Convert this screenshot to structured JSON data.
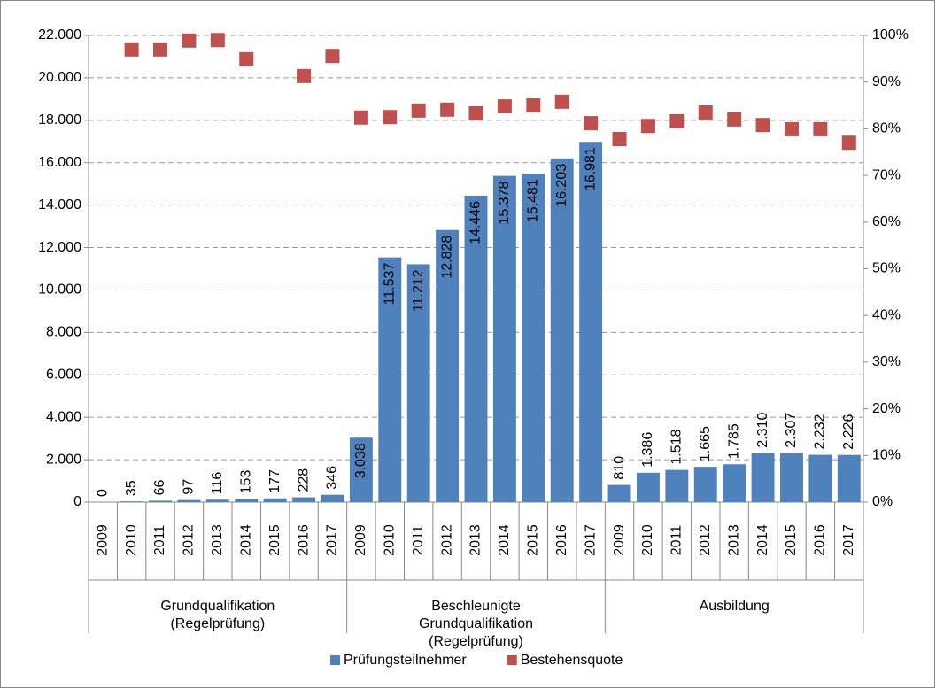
{
  "chart_data": {
    "type": "bar",
    "groups": [
      {
        "label": [
          "Grundqualifikation",
          "(Regelprüfung)"
        ],
        "categories": [
          "2009",
          "2010",
          "2011",
          "2012",
          "2013",
          "2014",
          "2015",
          "2016",
          "2017"
        ]
      },
      {
        "label": [
          "Beschleunigte",
          "Grundqualifikation",
          "(Regelprüfung)"
        ],
        "categories": [
          "2009",
          "2010",
          "2011",
          "2012",
          "2013",
          "2014",
          "2015",
          "2016",
          "2017"
        ]
      },
      {
        "label": [
          "Ausbildung"
        ],
        "categories": [
          "2009",
          "2010",
          "2011",
          "2012",
          "2013",
          "2014",
          "2015",
          "2016",
          "2017"
        ]
      }
    ],
    "series": [
      {
        "name": "Prüfungsteilnehmer",
        "type": "bar",
        "color": "#4f81bd",
        "values": [
          0,
          35,
          66,
          97,
          116,
          153,
          177,
          228,
          346,
          3038,
          11537,
          11212,
          12828,
          14446,
          15378,
          15481,
          16203,
          16981,
          810,
          1386,
          1518,
          1665,
          1785,
          2310,
          2307,
          2232,
          2226
        ],
        "value_labels": [
          "0",
          "35",
          "66",
          "97",
          "116",
          "153",
          "177",
          "228",
          "346",
          "3.038",
          "11.537",
          "11.212",
          "12.828",
          "14.446",
          "15.378",
          "15.481",
          "16.203",
          "16.981",
          "810",
          "1.386",
          "1.518",
          "1.665",
          "1.785",
          "2.310",
          "2.307",
          "2.232",
          "2.226"
        ]
      },
      {
        "name": "Bestehensquote",
        "type": "scatter",
        "axis": "y2",
        "color": "#c0504d",
        "values": [
          null,
          97.0,
          97.0,
          98.9,
          99.0,
          94.9,
          null,
          91.3,
          95.6,
          82.4,
          82.5,
          83.9,
          84.1,
          83.3,
          84.8,
          85.0,
          85.8,
          81.2,
          77.8,
          80.6,
          81.6,
          83.5,
          82.0,
          80.8,
          79.9,
          79.9,
          77.0
        ]
      }
    ],
    "ylim": [
      0,
      22000
    ],
    "yticks": [
      {
        "value": 0,
        "label": "0"
      },
      {
        "value": 2000,
        "label": "2.000"
      },
      {
        "value": 4000,
        "label": "4.000"
      },
      {
        "value": 6000,
        "label": "6.000"
      },
      {
        "value": 8000,
        "label": "8.000"
      },
      {
        "value": 10000,
        "label": "10.000"
      },
      {
        "value": 12000,
        "label": "12.000"
      },
      {
        "value": 14000,
        "label": "14.000"
      },
      {
        "value": 16000,
        "label": "16.000"
      },
      {
        "value": 18000,
        "label": "18.000"
      },
      {
        "value": 20000,
        "label": "20.000"
      },
      {
        "value": 22000,
        "label": "22.000"
      }
    ],
    "y2lim": [
      0,
      100
    ],
    "y2ticks": [
      {
        "value": 0,
        "label": "0%"
      },
      {
        "value": 10,
        "label": "10%"
      },
      {
        "value": 20,
        "label": "20%"
      },
      {
        "value": 30,
        "label": "30%"
      },
      {
        "value": 40,
        "label": "40%"
      },
      {
        "value": 50,
        "label": "50%"
      },
      {
        "value": 60,
        "label": "60%"
      },
      {
        "value": 70,
        "label": "70%"
      },
      {
        "value": 80,
        "label": "80%"
      },
      {
        "value": 90,
        "label": "90%"
      },
      {
        "value": 100,
        "label": "100%"
      }
    ],
    "grid": true,
    "legend": "bottom"
  }
}
